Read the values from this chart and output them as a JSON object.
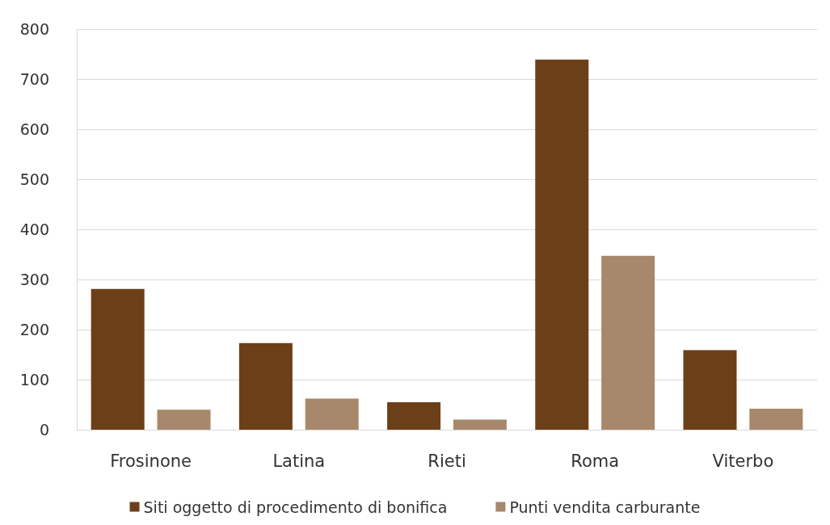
{
  "chart_data": {
    "type": "bar",
    "categories": [
      "Frosinone",
      "Latina",
      "Rieti",
      "Roma",
      "Viterbo"
    ],
    "series": [
      {
        "name": "Siti oggetto di procedimento di bonifica",
        "color": "#6b4019",
        "values": [
          281,
          173,
          55,
          739,
          159
        ]
      },
      {
        "name": "Punti vendita carburante",
        "color": "#a7886b",
        "values": [
          40,
          62,
          20,
          347,
          42
        ]
      }
    ],
    "ylim": [
      0,
      800
    ],
    "yticks": [
      0,
      100,
      200,
      300,
      400,
      500,
      600,
      700,
      800
    ],
    "grid": "y",
    "legend": "bottom"
  }
}
